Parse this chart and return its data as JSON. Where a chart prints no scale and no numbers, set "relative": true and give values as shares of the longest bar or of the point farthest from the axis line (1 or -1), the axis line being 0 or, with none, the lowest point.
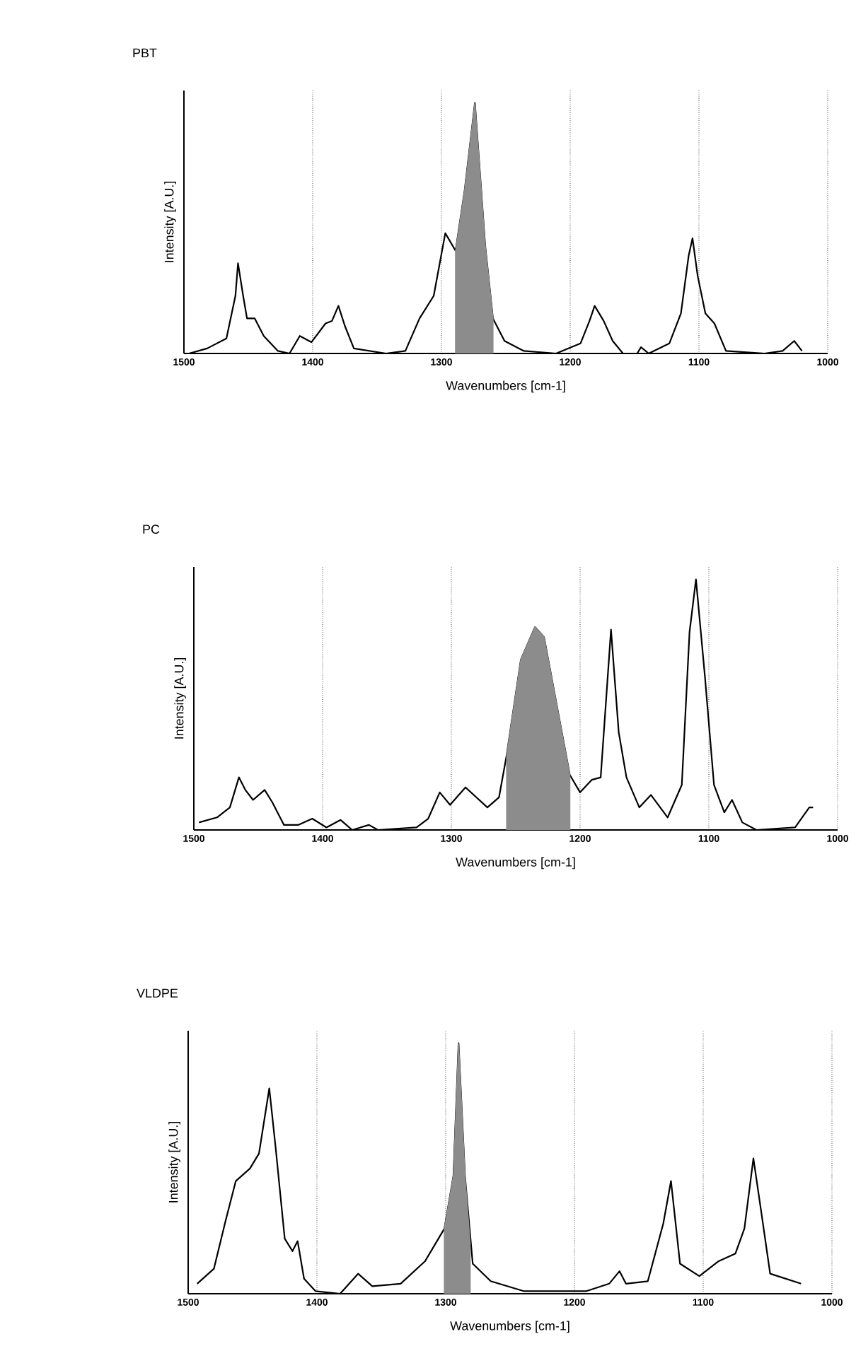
{
  "chart_data": [
    {
      "type": "line",
      "title": "PBT",
      "xlabel": "Wavenumbers [cm-1]",
      "ylabel": "Intensity [A.U.]",
      "xlim": [
        1500,
        1000
      ],
      "xticks": [
        1500,
        1400,
        1300,
        1200,
        1100,
        1000
      ],
      "relative": true,
      "tick_labels": "x",
      "grid": "x",
      "marker": "none",
      "series": [
        {
          "color": "#000000",
          "x": [
            1496,
            1482,
            1467,
            1460,
            1458,
            1454,
            1451,
            1445,
            1438,
            1427,
            1418,
            1410,
            1401,
            1390,
            1385,
            1380,
            1375,
            1368,
            1343,
            1328,
            1317,
            1306,
            1297,
            1289,
            1282,
            1274,
            1266,
            1260,
            1251,
            1236,
            1211,
            1192,
            1185,
            1181,
            1174,
            1167,
            1159,
            1148,
            1145,
            1139,
            1123,
            1114,
            1108,
            1105,
            1101,
            1095,
            1088,
            1079,
            1049,
            1035,
            1026,
            1020
          ],
          "values": [
            0,
            0.02,
            0.06,
            0.23,
            0.36,
            0.23,
            0.14,
            0.14,
            0.07,
            0.01,
            0,
            0.07,
            0.045,
            0.12,
            0.13,
            0.19,
            0.11,
            0.02,
            0,
            0.01,
            0.14,
            0.23,
            0.48,
            0.41,
            0.65,
            1.0,
            0.43,
            0.14,
            0.05,
            0.01,
            0,
            0.04,
            0.13,
            0.19,
            0.13,
            0.05,
            0,
            0,
            0.025,
            0,
            0.04,
            0.16,
            0.39,
            0.46,
            0.31,
            0.16,
            0.12,
            0.01,
            0,
            0.01,
            0.05,
            0.01
          ]
        },
        {
          "type": "area",
          "color": "#8c8c8c",
          "x": [
            1289,
            1282,
            1274,
            1266,
            1260
          ],
          "values": [
            0.41,
            0.65,
            1.0,
            0.43,
            0.14
          ]
        }
      ]
    },
    {
      "type": "line",
      "title": "PC",
      "xlabel": "Wavenumbers [cm-1]",
      "ylabel": "Intensity [A.U.]",
      "xlim": [
        1500,
        1000
      ],
      "xticks": [
        1500,
        1400,
        1300,
        1200,
        1100,
        1000
      ],
      "relative": true,
      "tick_labels": "x",
      "grid": "x",
      "marker": "none",
      "series": [
        {
          "color": "#000000",
          "x": [
            1496,
            1482,
            1472,
            1465,
            1460,
            1454,
            1445,
            1439,
            1430,
            1419,
            1408,
            1397,
            1386,
            1377,
            1364,
            1357,
            1327,
            1318,
            1309,
            1301,
            1289,
            1272,
            1263,
            1257,
            1246,
            1235,
            1228,
            1208,
            1200,
            1191,
            1184,
            1176,
            1170,
            1164,
            1154,
            1145,
            1132,
            1121,
            1115,
            1110,
            1103,
            1096,
            1088,
            1082,
            1074,
            1063,
            1033,
            1022,
            1019
          ],
          "values": [
            0.03,
            0.05,
            0.09,
            0.21,
            0.16,
            0.12,
            0.16,
            0.11,
            0.02,
            0.02,
            0.045,
            0.01,
            0.04,
            0,
            0.02,
            0,
            0.01,
            0.045,
            0.15,
            0.1,
            0.17,
            0.09,
            0.13,
            0.3,
            0.68,
            0.81,
            0.77,
            0.22,
            0.15,
            0.2,
            0.21,
            0.8,
            0.39,
            0.21,
            0.09,
            0.14,
            0.05,
            0.18,
            0.79,
            1.0,
            0.61,
            0.18,
            0.07,
            0.12,
            0.03,
            0,
            0.01,
            0.09,
            0.09
          ]
        },
        {
          "type": "area",
          "color": "#8c8c8c",
          "x": [
            1257,
            1246,
            1235,
            1228,
            1208
          ],
          "values": [
            0.3,
            0.68,
            0.81,
            0.77,
            0.22
          ]
        }
      ]
    },
    {
      "type": "line",
      "title": "VLDPE",
      "xlabel": "Wavenumbers [cm-1]",
      "ylabel": "Intensity [A.U.]",
      "xlim": [
        1500,
        1000
      ],
      "xticks": [
        1500,
        1400,
        1300,
        1200,
        1100,
        1000
      ],
      "relative": true,
      "tick_labels": "x",
      "grid": "x",
      "marker": "none",
      "series": [
        {
          "color": "#000000",
          "x": [
            1493,
            1480,
            1471,
            1463,
            1452,
            1445,
            1437,
            1432,
            1425,
            1419,
            1415,
            1410,
            1401,
            1382,
            1368,
            1357,
            1335,
            1316,
            1301,
            1294,
            1290,
            1285,
            1279,
            1265,
            1239,
            1191,
            1173,
            1165,
            1160,
            1143,
            1131,
            1125,
            1118,
            1103,
            1088,
            1075,
            1068,
            1061,
            1055,
            1048,
            1024
          ],
          "values": [
            0.04,
            0.1,
            0.29,
            0.45,
            0.5,
            0.56,
            0.82,
            0.58,
            0.22,
            0.17,
            0.21,
            0.06,
            0.01,
            0,
            0.08,
            0.03,
            0.04,
            0.13,
            0.26,
            0.47,
            1.0,
            0.47,
            0.12,
            0.05,
            0.01,
            0.01,
            0.04,
            0.09,
            0.04,
            0.05,
            0.28,
            0.45,
            0.12,
            0.07,
            0.13,
            0.16,
            0.26,
            0.54,
            0.33,
            0.08,
            0.04
          ]
        },
        {
          "type": "area",
          "color": "#8c8c8c",
          "x": [
            1301,
            1294,
            1290,
            1285,
            1281
          ],
          "values": [
            0.26,
            0.47,
            1.0,
            0.47,
            0.2
          ]
        }
      ]
    }
  ]
}
